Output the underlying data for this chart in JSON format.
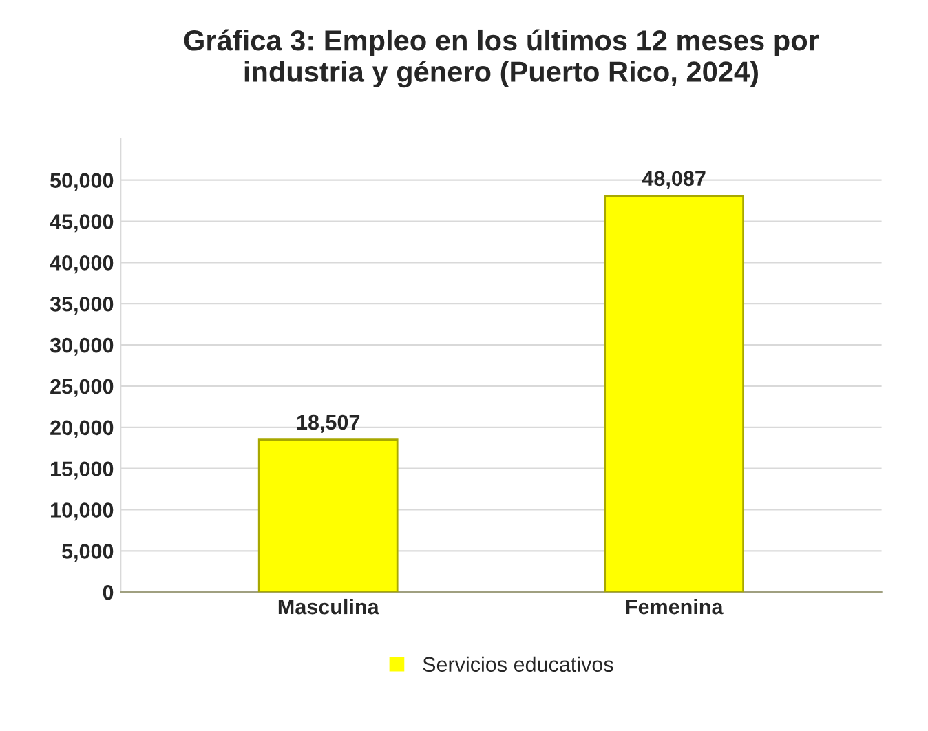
{
  "chart_data": {
    "type": "bar",
    "title": "Gráfica 3: Empleo en los últimos 12 meses por\nindustria y género (Puerto Rico, 2024)",
    "categories": [
      "Masculina",
      "Femenina"
    ],
    "series": [
      {
        "name": "Servicios educativos",
        "color": "#ffff00",
        "values": [
          18507,
          48087
        ],
        "value_labels": [
          "18,507",
          "48,087"
        ]
      }
    ],
    "ylim": [
      0,
      55000
    ],
    "yticks": [
      0,
      {
        "value": 5000,
        "label": "5,000"
      },
      {
        "value": 10000,
        "label": "10,000"
      },
      {
        "value": 15000,
        "label": "15,000"
      },
      {
        "value": 20000,
        "label": "20,000"
      },
      {
        "value": 25000,
        "label": "25,000"
      },
      {
        "value": 30000,
        "label": "30,000"
      },
      {
        "value": 35000,
        "label": "35,000"
      },
      {
        "value": 40000,
        "label": "40,000"
      },
      {
        "value": 45000,
        "label": "45,000"
      },
      {
        "value": 50000,
        "label": "50,000"
      }
    ],
    "grid": "y",
    "legend": "bottom"
  }
}
